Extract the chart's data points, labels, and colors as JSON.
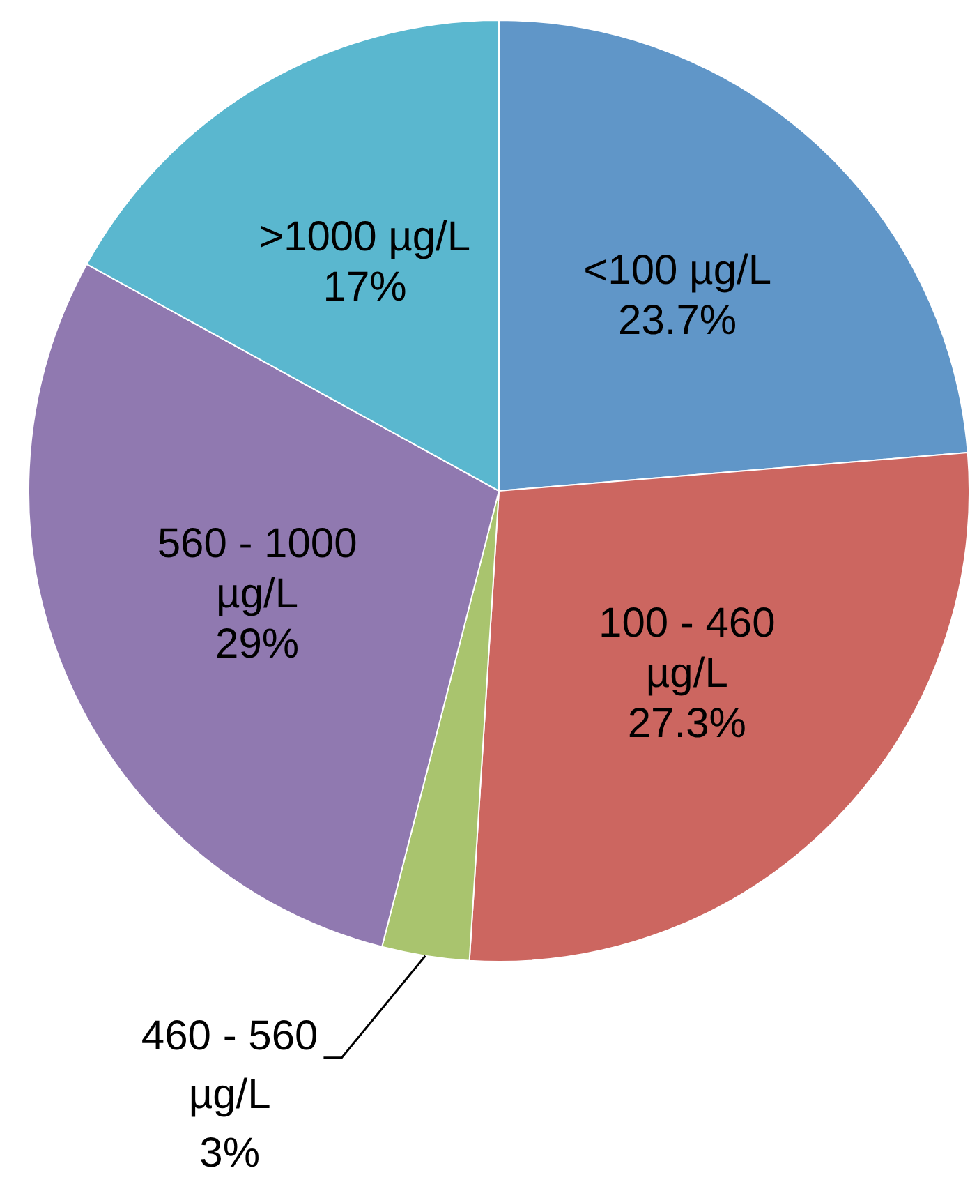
{
  "chart_data": {
    "type": "pie",
    "categories": [
      "<100 µg/L",
      "100 - 460 µg/L",
      "460 - 560 µg/L",
      "560 - 1000 µg/L",
      ">1000 µg/L"
    ],
    "values": [
      23.7,
      27.3,
      3,
      29,
      17
    ],
    "value_labels": [
      "23.7%",
      "27.3%",
      "3%",
      "29%",
      "17%"
    ],
    "colors": [
      "#6096c8",
      "#cc6660",
      "#a9c46e",
      "#9079b0",
      "#5ab7cf"
    ],
    "legend": false
  }
}
